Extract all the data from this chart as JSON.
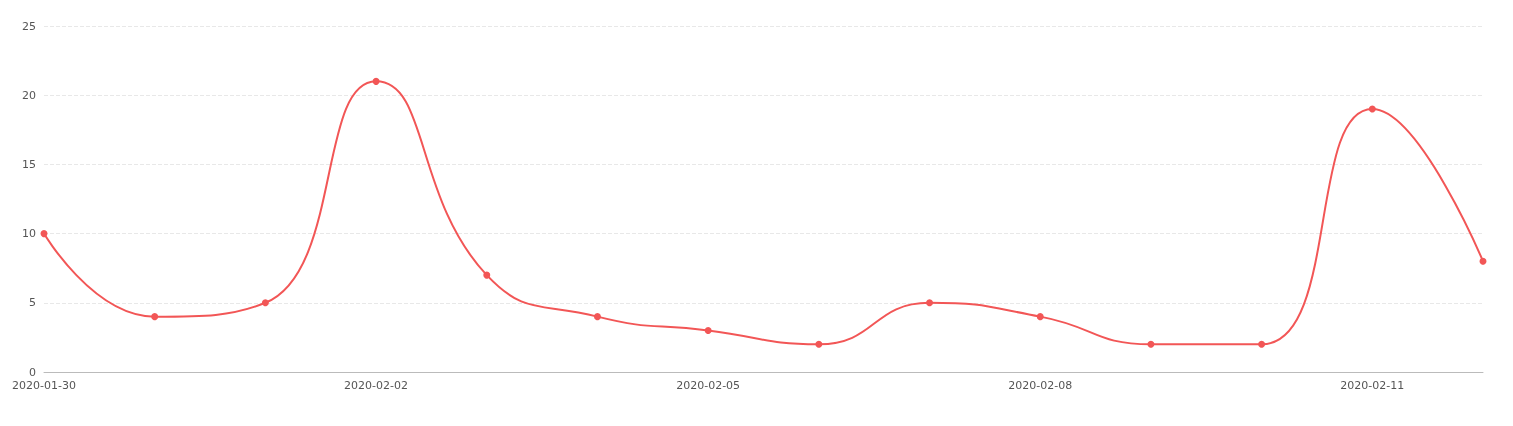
{
  "chart_data": {
    "type": "line",
    "categories": [
      "2020-01-30",
      null,
      null,
      "2020-02-02",
      null,
      null,
      "2020-02-05",
      null,
      null,
      "2020-02-08",
      null,
      null,
      "2020-02-11",
      null
    ],
    "series": [
      {
        "color": "#f25656",
        "values": [
          10,
          4,
          5,
          21,
          7,
          4,
          3,
          2,
          5,
          4,
          2,
          2,
          19,
          8
        ]
      }
    ],
    "ylim": [
      0,
      25
    ],
    "yticks": [
      0,
      5,
      10,
      15,
      20,
      25
    ],
    "grid": "y",
    "marker": "circle",
    "line_style": "solid"
  }
}
